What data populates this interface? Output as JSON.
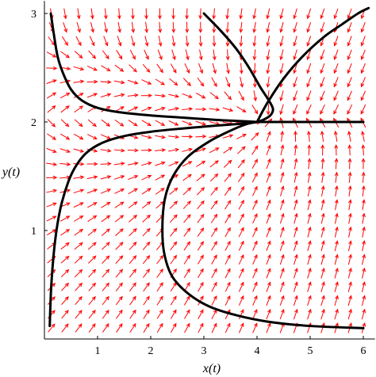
{
  "chart_data": {
    "type": "phase-portrait",
    "title": "",
    "xlabel": "x(t)",
    "ylabel": "y(t)",
    "xlim": [
      0,
      6.1
    ],
    "ylim": [
      0,
      3.1
    ],
    "x_ticks": [
      1,
      2,
      3,
      4,
      5,
      6
    ],
    "y_ticks": [
      1,
      2,
      3
    ],
    "equilibrium": [
      4,
      2
    ],
    "arrow_color": "#ff0000",
    "curve_color": "#000000",
    "grid": false,
    "trajectories": [
      {
        "x": [
          0.12,
          0.18,
          0.25,
          0.35,
          0.5,
          0.7,
          1.0,
          1.4,
          2.0,
          2.6,
          3.2,
          3.6,
          3.85,
          4.0
        ],
        "y": [
          3.0,
          2.8,
          2.6,
          2.45,
          2.3,
          2.2,
          2.13,
          2.09,
          2.06,
          2.04,
          2.02,
          2.01,
          2.005,
          2.0
        ]
      },
      {
        "x": [
          0.1,
          0.13,
          0.2,
          0.3,
          0.45,
          0.6,
          0.8,
          1.1,
          1.5,
          2.0,
          2.6,
          3.2,
          3.6,
          3.85,
          4.0
        ],
        "y": [
          0.12,
          0.5,
          0.9,
          1.2,
          1.45,
          1.6,
          1.72,
          1.81,
          1.87,
          1.91,
          1.94,
          1.965,
          1.98,
          1.99,
          2.0
        ]
      },
      {
        "x": [
          3.0,
          3.3,
          3.6,
          3.85,
          4.05,
          4.22,
          4.3,
          4.25,
          4.12,
          4.0
        ],
        "y": [
          3.0,
          2.85,
          2.68,
          2.5,
          2.33,
          2.2,
          2.12,
          2.06,
          2.02,
          2.0
        ]
      },
      {
        "x": [
          4.0,
          4.2,
          4.5,
          4.85,
          5.25,
          5.6,
          5.9,
          6.1
        ],
        "y": [
          2.0,
          2.18,
          2.4,
          2.6,
          2.78,
          2.9,
          3.0,
          3.05
        ]
      },
      {
        "x": [
          4.0,
          4.5,
          5.0,
          5.5,
          6.0
        ],
        "y": [
          2.0,
          2.0,
          2.0,
          2.0,
          2.0
        ]
      },
      {
        "x": [
          6.0,
          5.0,
          4.2,
          3.6,
          3.1,
          2.7,
          2.4,
          2.25,
          2.22,
          2.27,
          2.42,
          2.7,
          3.1,
          3.5,
          3.8,
          4.0
        ],
        "y": [
          0.1,
          0.12,
          0.16,
          0.22,
          0.3,
          0.42,
          0.58,
          0.8,
          1.05,
          1.3,
          1.5,
          1.68,
          1.82,
          1.92,
          1.98,
          2.0
        ]
      }
    ]
  }
}
